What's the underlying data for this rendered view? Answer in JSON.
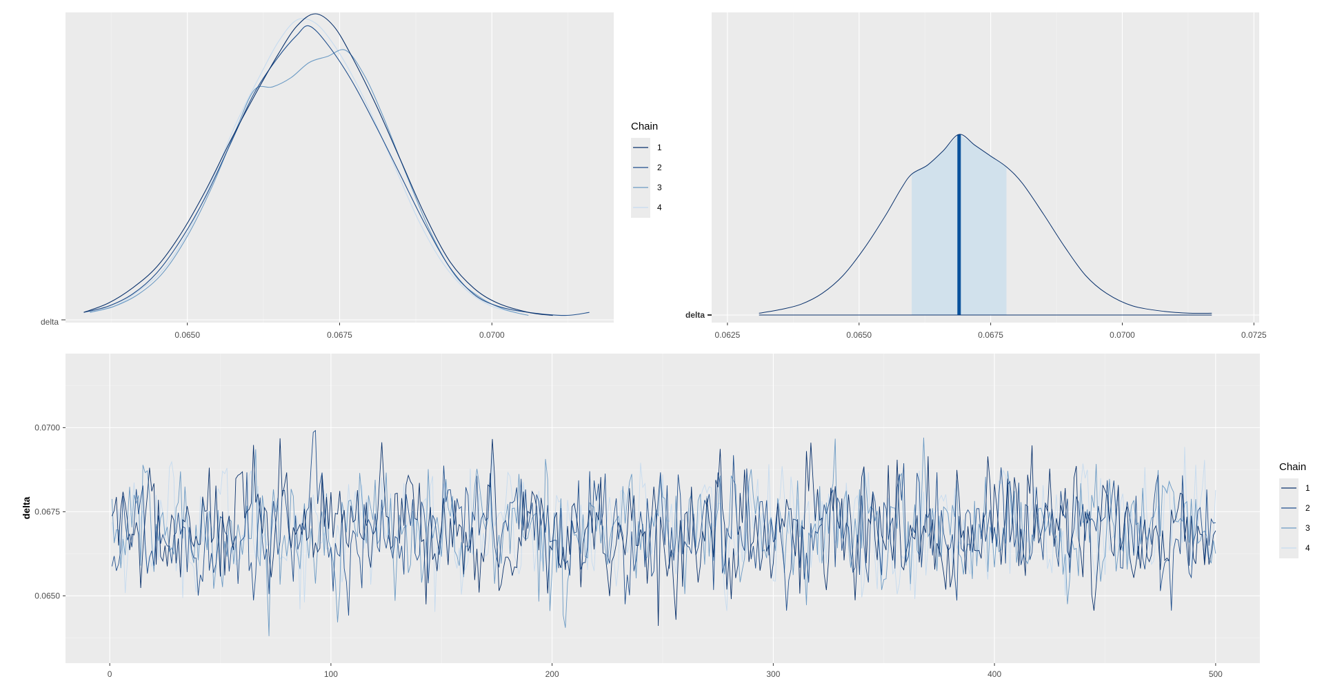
{
  "chart_data": [
    {
      "id": "density",
      "type": "line",
      "subtype": "density-by-chain",
      "parameter_label": "delta",
      "xlim": [
        0.063,
        0.072
      ],
      "x_ticks": [
        0.065,
        0.0675,
        0.07
      ],
      "x_tick_labels": [
        "0.0650",
        "0.0675",
        "0.0700"
      ],
      "grid": true,
      "legend": {
        "title": "Chain",
        "position": "right",
        "entries": [
          "1",
          "2",
          "3",
          "4"
        ]
      },
      "series": [
        {
          "name": "1",
          "color": "#08306b",
          "x": [
            0.0633,
            0.0637,
            0.0641,
            0.0645,
            0.0649,
            0.0653,
            0.0657,
            0.0661,
            0.0665,
            0.0668,
            0.0671,
            0.0674,
            0.0677,
            0.0681,
            0.0685,
            0.0689,
            0.0693,
            0.0697,
            0.0701,
            0.0706,
            0.071
          ],
          "y": [
            0.02,
            0.05,
            0.1,
            0.17,
            0.28,
            0.42,
            0.58,
            0.73,
            0.87,
            0.96,
            1.0,
            0.96,
            0.86,
            0.7,
            0.52,
            0.34,
            0.19,
            0.1,
            0.05,
            0.02,
            0.01
          ]
        },
        {
          "name": "2",
          "color": "#1f4e8c",
          "x": [
            0.0633,
            0.0637,
            0.0641,
            0.0645,
            0.0649,
            0.0653,
            0.0657,
            0.0661,
            0.0665,
            0.0668,
            0.067,
            0.0673,
            0.0677,
            0.0681,
            0.0685,
            0.0689,
            0.0693,
            0.0697,
            0.0701,
            0.0706,
            0.0712,
            0.0716
          ],
          "y": [
            0.02,
            0.04,
            0.08,
            0.15,
            0.26,
            0.4,
            0.57,
            0.74,
            0.86,
            0.93,
            0.96,
            0.9,
            0.78,
            0.63,
            0.47,
            0.31,
            0.17,
            0.08,
            0.04,
            0.02,
            0.01,
            0.02
          ]
        },
        {
          "name": "3",
          "color": "#6b9ac4",
          "x": [
            0.0634,
            0.0638,
            0.0642,
            0.0646,
            0.065,
            0.0654,
            0.0658,
            0.0661,
            0.0664,
            0.0667,
            0.067,
            0.0673,
            0.0676,
            0.0679,
            0.0682,
            0.0686,
            0.069,
            0.0694,
            0.0698,
            0.0702,
            0.0706
          ],
          "y": [
            0.02,
            0.04,
            0.08,
            0.15,
            0.27,
            0.43,
            0.62,
            0.75,
            0.76,
            0.79,
            0.84,
            0.86,
            0.88,
            0.8,
            0.67,
            0.47,
            0.28,
            0.14,
            0.07,
            0.03,
            0.01
          ]
        },
        {
          "name": "4",
          "color": "#c6dbef",
          "x": [
            0.0634,
            0.0638,
            0.0642,
            0.0646,
            0.065,
            0.0654,
            0.0658,
            0.0662,
            0.0665,
            0.0668,
            0.0671,
            0.0674,
            0.0677,
            0.068,
            0.0684,
            0.0688,
            0.0692,
            0.0696,
            0.07,
            0.0704
          ],
          "y": [
            0.02,
            0.04,
            0.09,
            0.16,
            0.28,
            0.45,
            0.64,
            0.8,
            0.91,
            0.98,
            0.97,
            0.9,
            0.8,
            0.68,
            0.5,
            0.32,
            0.18,
            0.09,
            0.04,
            0.02
          ]
        }
      ]
    },
    {
      "id": "areas",
      "type": "area",
      "subtype": "posterior-interval",
      "parameter_label": "delta",
      "xlim": [
        0.0622,
        0.0726
      ],
      "x_ticks": [
        0.0625,
        0.065,
        0.0675,
        0.07,
        0.0725
      ],
      "x_tick_labels": [
        "0.0625",
        "0.0650",
        "0.0675",
        "0.0700",
        "0.0725"
      ],
      "grid": true,
      "median": 0.0669,
      "interval": [
        0.066,
        0.0678
      ],
      "outline_color": "#08306b",
      "fill_color": "#d1e1ec",
      "median_color": "#08519c",
      "x": [
        0.0631,
        0.0635,
        0.0639,
        0.0643,
        0.0647,
        0.0651,
        0.0655,
        0.0658,
        0.066,
        0.0663,
        0.0666,
        0.0669,
        0.0672,
        0.0675,
        0.0678,
        0.0681,
        0.0685,
        0.0689,
        0.0693,
        0.0697,
        0.0702,
        0.0708,
        0.0713,
        0.0717
      ],
      "y": [
        0.01,
        0.03,
        0.06,
        0.12,
        0.22,
        0.37,
        0.55,
        0.7,
        0.78,
        0.83,
        0.91,
        1.0,
        0.94,
        0.88,
        0.82,
        0.73,
        0.56,
        0.38,
        0.22,
        0.12,
        0.05,
        0.02,
        0.01,
        0.01
      ]
    },
    {
      "id": "trace",
      "type": "line",
      "subtype": "trace",
      "ylabel": "delta",
      "xlim": [
        -20,
        520
      ],
      "ylim": [
        0.063,
        0.0722
      ],
      "x_ticks": [
        0,
        100,
        200,
        300,
        400,
        500
      ],
      "x_tick_labels": [
        "0",
        "100",
        "200",
        "300",
        "400",
        "500"
      ],
      "y_ticks": [
        0.065,
        0.0675,
        0.07
      ],
      "y_tick_labels": [
        "0.0650",
        "0.0675",
        "0.0700"
      ],
      "grid": true,
      "iterations": 500,
      "legend": {
        "title": "Chain",
        "position": "right",
        "entries": [
          "1",
          "2",
          "3",
          "4"
        ]
      },
      "series": [
        {
          "name": "1",
          "color": "#08306b",
          "mean": 0.0669,
          "sd": 0.00095
        },
        {
          "name": "2",
          "color": "#1f4e8c",
          "mean": 0.0669,
          "sd": 0.00095
        },
        {
          "name": "3",
          "color": "#6b9ac4",
          "mean": 0.067,
          "sd": 0.00095
        },
        {
          "name": "4",
          "color": "#c6dbef",
          "mean": 0.067,
          "sd": 0.00092
        }
      ]
    }
  ]
}
